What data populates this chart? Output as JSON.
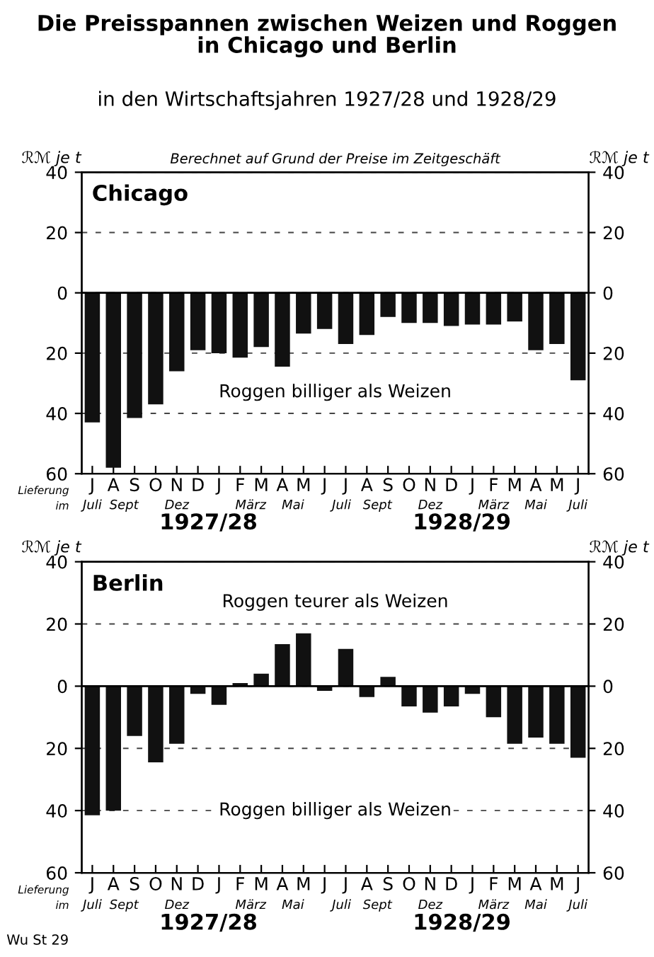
{
  "chart_data": [
    {
      "type": "bar",
      "title": "Die Preisspannen zwischen Weizen und Roggen\nin Chicago und Berlin",
      "subtitle": "in den Wirtschaftsjahren 1927/28 und 1928/29",
      "ylabel": "ℛℳ je t",
      "y2label": "ℛℳ je t",
      "categories": [
        "J",
        "A",
        "S",
        "O",
        "N",
        "D",
        "J",
        "F",
        "M",
        "A",
        "M",
        "J",
        "J",
        "A",
        "S",
        "O",
        "N",
        "D",
        "J",
        "F",
        "M",
        "A",
        "M",
        "J"
      ],
      "values": [
        -43,
        -58,
        -41.5,
        -37,
        -26,
        -19,
        -20,
        -21.5,
        -18,
        -24.5,
        -13.5,
        -12,
        -17,
        -14,
        -8,
        -10,
        -10,
        -11,
        -10.5,
        -10.5,
        -9.5,
        -19,
        -17,
        -29
      ],
      "color": "#111111",
      "ylim": [
        -60,
        40
      ],
      "yticks": [
        40,
        20,
        0,
        {
          "value": -20,
          "label": "20"
        },
        {
          "value": -40,
          "label": "40"
        },
        {
          "value": -60,
          "label": "60"
        }
      ],
      "y2lim": [
        -60,
        40
      ],
      "y2ticks": [
        40,
        20,
        0,
        {
          "value": -20,
          "label": "20"
        },
        {
          "value": -40,
          "label": "40"
        },
        {
          "value": -60,
          "label": "60"
        }
      ],
      "grid": "y",
      "annotations": [
        "Berechnet auf Grund der Preise im Zeitgeschäft",
        "Chicago",
        "Roggen billiger als Weizen",
        "Lieferung\nim",
        "Juli",
        "Sept",
        "Dez",
        "März",
        "Mai",
        "Juli",
        "Sept",
        "Dez",
        "März",
        "Mai",
        "Juli",
        "1927/28",
        "1928/29"
      ]
    },
    {
      "type": "bar",
      "ylabel": "ℛℳ je t",
      "y2label": "ℛℳ je t",
      "categories": [
        "J",
        "A",
        "S",
        "O",
        "N",
        "D",
        "J",
        "F",
        "M",
        "A",
        "M",
        "J",
        "J",
        "A",
        "S",
        "O",
        "N",
        "D",
        "J",
        "F",
        "M",
        "A",
        "M",
        "J"
      ],
      "values": [
        -41.5,
        -40,
        -16,
        -24.5,
        -18.5,
        -2.5,
        -6,
        1,
        4,
        13.5,
        17,
        -1.5,
        12,
        -3.5,
        3,
        -6.5,
        -8.5,
        -6.5,
        -2.5,
        -10,
        -18.5,
        -16.5,
        -18.5,
        -23
      ],
      "color": "#111111",
      "ylim": [
        -60,
        40
      ],
      "yticks": [
        40,
        20,
        0,
        {
          "value": -20,
          "label": "20"
        },
        {
          "value": -40,
          "label": "40"
        },
        {
          "value": -60,
          "label": "60"
        }
      ],
      "y2lim": [
        -60,
        40
      ],
      "y2ticks": [
        40,
        20,
        0,
        {
          "value": -20,
          "label": "20"
        },
        {
          "value": -40,
          "label": "40"
        },
        {
          "value": -60,
          "label": "60"
        }
      ],
      "grid": "y",
      "annotations": [
        "Berlin",
        "Roggen teurer als Weizen",
        "Roggen billiger als Weizen",
        "Lieferung\nim",
        "Juli",
        "Sept",
        "Dez",
        "März",
        "Mai",
        "Juli",
        "Sept",
        "Dez",
        "März",
        "Mai",
        "Juli",
        "1927/28",
        "1928/29",
        "Wu St 29"
      ]
    }
  ]
}
